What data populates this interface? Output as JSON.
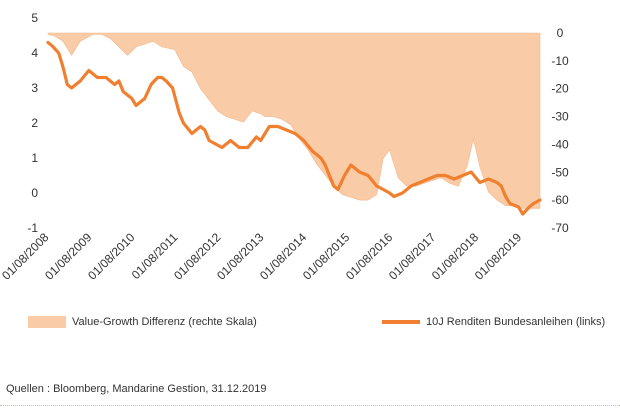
{
  "chart_data": {
    "type": "area+line",
    "title": "",
    "xlabel": "",
    "ylabel_left": "",
    "ylabel_right": "",
    "x_ticks": [
      "01/08/2008",
      "01/08/2009",
      "01/08/2010",
      "01/08/2011",
      "01/08/2012",
      "01/08/2013",
      "01/08/2014",
      "01/08/2015",
      "01/08/2016",
      "01/08/2017",
      "01/08/2018",
      "01/08/2019"
    ],
    "x_range": [
      2008.55,
      2020.0
    ],
    "y_left": {
      "ticks": [
        "5",
        "4",
        "3",
        "2",
        "1",
        "0",
        "-1"
      ],
      "range": [
        -1,
        5
      ]
    },
    "y_right": {
      "ticks": [
        "0",
        "-10",
        "-20",
        "-30",
        "-40",
        "-50",
        "-60",
        "-70"
      ],
      "range": [
        -70,
        0
      ]
    },
    "grid": false,
    "legend_position": "bottom",
    "series": [
      {
        "name": "Value-Growth Differenz (rechte Skala)",
        "type": "area",
        "axis": "right",
        "color": "#f9cba6",
        "x": [
          2008.55,
          2008.7,
          2008.9,
          2009.1,
          2009.3,
          2009.6,
          2009.8,
          2010.0,
          2010.2,
          2010.4,
          2010.6,
          2010.8,
          2011.0,
          2011.2,
          2011.5,
          2011.7,
          2011.9,
          2012.1,
          2012.3,
          2012.5,
          2012.7,
          2012.9,
          2013.1,
          2013.3,
          2013.5,
          2013.6,
          2013.8,
          2014.0,
          2014.2,
          2014.4,
          2014.6,
          2014.8,
          2015.0,
          2015.2,
          2015.4,
          2015.6,
          2015.8,
          2016.0,
          2016.2,
          2016.35,
          2016.5,
          2016.7,
          2016.9,
          2017.1,
          2017.3,
          2017.5,
          2017.7,
          2017.9,
          2018.1,
          2018.3,
          2018.45,
          2018.6,
          2018.8,
          2019.0,
          2019.2,
          2019.4,
          2019.6,
          2019.8,
          2020.0
        ],
        "values": [
          -0.5,
          -1,
          -3,
          -8,
          -3,
          -0.5,
          -0.5,
          -2,
          -5,
          -8,
          -5,
          -4,
          -3,
          -5,
          -6,
          -12,
          -14,
          -20,
          -24,
          -28,
          -30,
          -31,
          -32,
          -28,
          -29,
          -30,
          -30,
          -31,
          -33,
          -38,
          -42,
          -47,
          -51,
          -55,
          -58,
          -59,
          -60,
          -60,
          -58,
          -45,
          -42,
          -52,
          -55,
          -55,
          -54,
          -53,
          -52,
          -54,
          -55,
          -48,
          -38,
          -48,
          -57,
          -60,
          -62,
          -62,
          -63,
          -63,
          -63
        ]
      },
      {
        "name": "10J Renditen Bundesanleihen (links)",
        "type": "line",
        "axis": "left",
        "color": "#f08030",
        "x": [
          2008.55,
          2008.65,
          2008.8,
          2008.9,
          2009.0,
          2009.1,
          2009.3,
          2009.5,
          2009.7,
          2009.9,
          2010.1,
          2010.2,
          2010.3,
          2010.5,
          2010.6,
          2010.8,
          2010.95,
          2011.1,
          2011.2,
          2011.3,
          2011.45,
          2011.6,
          2011.7,
          2011.9,
          2012.1,
          2012.2,
          2012.3,
          2012.45,
          2012.6,
          2012.8,
          2013.0,
          2013.2,
          2013.4,
          2013.5,
          2013.7,
          2013.9,
          2014.1,
          2014.3,
          2014.5,
          2014.7,
          2014.9,
          2015.0,
          2015.1,
          2015.2,
          2015.3,
          2015.45,
          2015.6,
          2015.8,
          2016.0,
          2016.2,
          2016.35,
          2016.5,
          2016.6,
          2016.8,
          2017.0,
          2017.2,
          2017.4,
          2017.6,
          2017.8,
          2018.0,
          2018.2,
          2018.4,
          2018.6,
          2018.8,
          2019.0,
          2019.1,
          2019.2,
          2019.3,
          2019.5,
          2019.6,
          2019.75,
          2019.85,
          2020.0
        ],
        "values": [
          4.3,
          4.2,
          4.0,
          3.6,
          3.1,
          3.0,
          3.2,
          3.5,
          3.3,
          3.3,
          3.1,
          3.2,
          2.9,
          2.7,
          2.5,
          2.7,
          3.1,
          3.3,
          3.3,
          3.2,
          3.0,
          2.3,
          2.0,
          1.7,
          1.9,
          1.8,
          1.5,
          1.4,
          1.3,
          1.5,
          1.3,
          1.3,
          1.6,
          1.5,
          1.9,
          1.9,
          1.8,
          1.7,
          1.5,
          1.2,
          1.0,
          0.8,
          0.5,
          0.2,
          0.1,
          0.5,
          0.8,
          0.6,
          0.5,
          0.2,
          0.1,
          0.0,
          -0.1,
          0.0,
          0.2,
          0.3,
          0.4,
          0.5,
          0.5,
          0.4,
          0.5,
          0.6,
          0.3,
          0.4,
          0.3,
          0.2,
          -0.1,
          -0.3,
          -0.4,
          -0.6,
          -0.4,
          -0.3,
          -0.2
        ]
      }
    ]
  },
  "legend": {
    "area_label": "Value-Growth Differenz (rechte Skala)",
    "line_label": "10J Renditen Bundesanleihen (links)"
  },
  "source": "Quellen : Bloomberg, Mandarine Gestion, 31.12.2019"
}
